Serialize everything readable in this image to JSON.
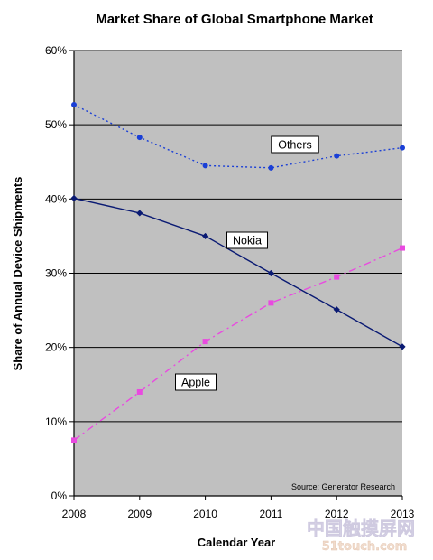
{
  "chart_data": {
    "type": "line",
    "title": "Market Share of Global Smartphone Market",
    "xlabel": "Calendar Year",
    "ylabel": "Share of Annual Device Shipments",
    "x": [
      "2008",
      "2009",
      "2010",
      "2011",
      "2012",
      "2013"
    ],
    "ylim": [
      0,
      60
    ],
    "yticks": [
      0,
      10,
      20,
      30,
      40,
      50,
      60
    ],
    "ytick_labels": [
      "0%",
      "10%",
      "20%",
      "30%",
      "40%",
      "50%",
      "60%"
    ],
    "grid": true,
    "plot_background": "#c0c0c0",
    "series": [
      {
        "name": "Others",
        "values": [
          52.7,
          48.3,
          44.5,
          44.2,
          45.8,
          46.9
        ],
        "color": "#1a3fd6",
        "line_style": "dotted",
        "marker": "circle"
      },
      {
        "name": "Nokia",
        "values": [
          40.1,
          38.1,
          35.0,
          30.0,
          25.1,
          20.1
        ],
        "color": "#0a1a73",
        "line_style": "solid",
        "marker": "diamond"
      },
      {
        "name": "Apple",
        "values": [
          7.5,
          14.0,
          20.8,
          26.0,
          29.5,
          33.4
        ],
        "color": "#e94ae0",
        "line_style": "dash-dot",
        "marker": "square"
      }
    ],
    "annotations": [
      {
        "text": "Others",
        "series": "Others"
      },
      {
        "text": "Nokia",
        "series": "Nokia"
      },
      {
        "text": "Apple",
        "series": "Apple"
      },
      {
        "text": "Source: Generator Research"
      }
    ]
  },
  "watermark": {
    "line1": "中国触摸屏网",
    "line2": "51touch.com"
  }
}
